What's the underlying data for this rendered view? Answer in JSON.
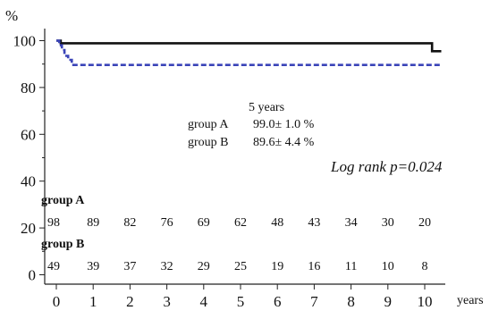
{
  "chart_data": {
    "type": "line",
    "ylabel": "%",
    "xlabel": "years",
    "xlim": [
      0,
      10.5
    ],
    "ylim": [
      0,
      100
    ],
    "x_ticks": [
      0,
      1,
      2,
      3,
      4,
      5,
      6,
      7,
      8,
      9,
      10
    ],
    "y_ticks": [
      0,
      20,
      40,
      60,
      80,
      100
    ],
    "series": [
      {
        "name": "group A",
        "color": "#111111",
        "dashed": false,
        "points": [
          [
            0,
            100
          ],
          [
            0.12,
            100
          ],
          [
            0.12,
            98.9
          ],
          [
            10.2,
            98.9
          ],
          [
            10.2,
            95.5
          ],
          [
            10.45,
            95.5
          ]
        ]
      },
      {
        "name": "group B",
        "color": "#3a44b8",
        "dashed": true,
        "points": [
          [
            0,
            100
          ],
          [
            0.08,
            100
          ],
          [
            0.08,
            98
          ],
          [
            0.15,
            98
          ],
          [
            0.15,
            96
          ],
          [
            0.22,
            96
          ],
          [
            0.22,
            93.5
          ],
          [
            0.32,
            93.5
          ],
          [
            0.32,
            91.8
          ],
          [
            0.42,
            91.8
          ],
          [
            0.42,
            89.6
          ],
          [
            10.45,
            89.6
          ]
        ]
      }
    ],
    "annotations": {
      "stats_heading": "5 years",
      "stats": [
        {
          "group": "group A",
          "value": "99.0± 1.0 %"
        },
        {
          "group": "group B",
          "value": "89.6± 4.4 %"
        }
      ],
      "log_rank": "Log rank  p=0.024"
    },
    "risk_table": [
      {
        "label": "group A",
        "values": [
          98,
          89,
          82,
          76,
          69,
          62,
          48,
          43,
          34,
          30,
          20
        ]
      },
      {
        "label": "group B",
        "values": [
          49,
          39,
          37,
          32,
          29,
          25,
          19,
          16,
          11,
          10,
          8
        ]
      }
    ]
  }
}
